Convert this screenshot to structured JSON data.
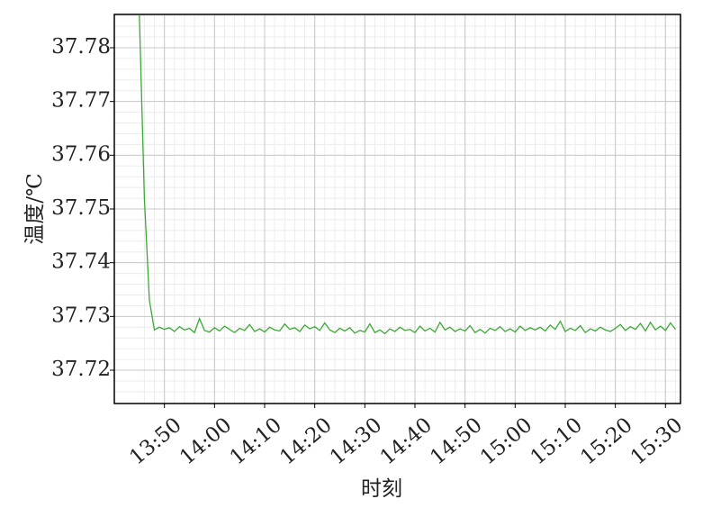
{
  "chart_data": {
    "type": "line",
    "x_label": "时刻",
    "y_label": "温度/℃",
    "x": [
      "13:45",
      "13:46",
      "13:47",
      "13:48",
      "13:49",
      "13:50",
      "13:51",
      "13:52",
      "13:53",
      "13:54",
      "13:55",
      "13:56",
      "13:57",
      "13:58",
      "13:59",
      "14:00",
      "14:01",
      "14:02",
      "14:03",
      "14:04",
      "14:05",
      "14:06",
      "14:07",
      "14:08",
      "14:09",
      "14:10",
      "14:11",
      "14:12",
      "14:13",
      "14:14",
      "14:15",
      "14:16",
      "14:17",
      "14:18",
      "14:19",
      "14:20",
      "14:21",
      "14:22",
      "14:23",
      "14:24",
      "14:25",
      "14:26",
      "14:27",
      "14:28",
      "14:29",
      "14:30",
      "14:31",
      "14:32",
      "14:33",
      "14:34",
      "14:35",
      "14:36",
      "14:37",
      "14:38",
      "14:39",
      "14:40",
      "14:41",
      "14:42",
      "14:43",
      "14:44",
      "14:45",
      "14:46",
      "14:47",
      "14:48",
      "14:49",
      "14:50",
      "14:51",
      "14:52",
      "14:53",
      "14:54",
      "14:55",
      "14:56",
      "14:57",
      "14:58",
      "14:59",
      "15:00",
      "15:01",
      "15:02",
      "15:03",
      "15:04",
      "15:05",
      "15:06",
      "15:07",
      "15:08",
      "15:09",
      "15:10",
      "15:11",
      "15:12",
      "15:13",
      "15:14",
      "15:15",
      "15:16",
      "15:17",
      "15:18",
      "15:19",
      "15:20",
      "15:21",
      "15:22",
      "15:23",
      "15:24",
      "15:25",
      "15:26",
      "15:27",
      "15:28",
      "15:29",
      "15:30",
      "15:31",
      "15:32"
    ],
    "series": [
      {
        "name": "温度",
        "color": "#3aaa35",
        "values": [
          37.786,
          37.752,
          37.733,
          37.7275,
          37.728,
          37.7276,
          37.7279,
          37.7272,
          37.7281,
          37.7275,
          37.7278,
          37.727,
          37.7296,
          37.7274,
          37.7271,
          37.7279,
          37.7273,
          37.7282,
          37.7276,
          37.727,
          37.7278,
          37.7274,
          37.7285,
          37.7272,
          37.7277,
          37.7271,
          37.728,
          37.7275,
          37.7273,
          37.7286,
          37.7276,
          37.7279,
          37.7272,
          37.7284,
          37.7277,
          37.7281,
          37.7274,
          37.7288,
          37.7275,
          37.727,
          37.7278,
          37.7273,
          37.7279,
          37.7269,
          37.7274,
          37.7271,
          37.7286,
          37.727,
          37.7275,
          37.7268,
          37.7277,
          37.7272,
          37.728,
          37.7274,
          37.7276,
          37.727,
          37.7282,
          37.7273,
          37.7278,
          37.7271,
          37.7289,
          37.7275,
          37.728,
          37.7272,
          37.7277,
          37.7273,
          37.7283,
          37.727,
          37.7276,
          37.7269,
          37.7278,
          37.7274,
          37.7281,
          37.7272,
          37.7277,
          37.7271,
          37.7282,
          37.7274,
          37.7279,
          37.7275,
          37.728,
          37.7273,
          37.7284,
          37.7276,
          37.7291,
          37.7272,
          37.7278,
          37.7274,
          37.7283,
          37.727,
          37.7277,
          37.7273,
          37.728,
          37.7275,
          37.7272,
          37.7278,
          37.7285,
          37.7274,
          37.7281,
          37.7276,
          37.7287,
          37.7273,
          37.7289,
          37.7275,
          37.7282,
          37.7274,
          37.7288,
          37.7276
        ]
      }
    ],
    "xlim": [
      "13:40",
      "15:33"
    ],
    "xticks": [
      "13:50",
      "14:00",
      "14:10",
      "14:20",
      "14:30",
      "14:40",
      "14:50",
      "15:00",
      "15:10",
      "15:20",
      "15:30"
    ],
    "ylim": [
      37.7138,
      37.7862
    ],
    "yticks": [
      {
        "value": 37.72,
        "label": "37.72"
      },
      {
        "value": 37.73,
        "label": "37.73"
      },
      {
        "value": 37.74,
        "label": "37.74"
      },
      {
        "value": 37.75,
        "label": "37.75"
      },
      {
        "value": 37.76,
        "label": "37.76"
      },
      {
        "value": 37.77,
        "label": "37.77"
      },
      {
        "value": 37.78,
        "label": "37.78"
      }
    ],
    "grid": true
  }
}
